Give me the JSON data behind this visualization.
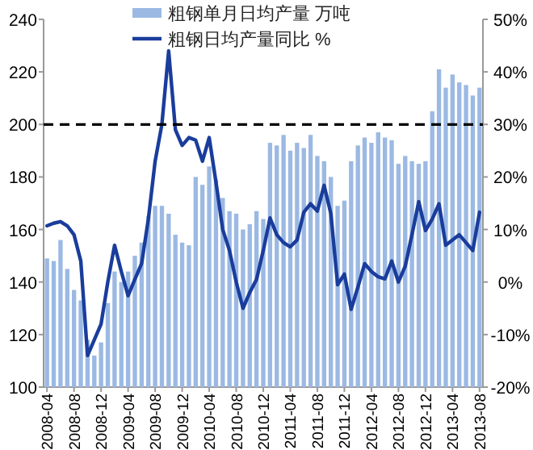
{
  "chart_data": {
    "type": "bar",
    "categories": [
      "2008-04",
      null,
      null,
      null,
      "2008-08",
      null,
      null,
      null,
      "2008-12",
      null,
      null,
      null,
      "2009-04",
      null,
      null,
      null,
      "2009-08",
      null,
      null,
      null,
      "2009-12",
      null,
      null,
      null,
      "2010-04",
      null,
      null,
      null,
      "2010-08",
      null,
      null,
      null,
      "2010-12",
      null,
      null,
      null,
      "2011-04",
      null,
      null,
      null,
      "2011-08",
      null,
      null,
      null,
      "2011-12",
      null,
      null,
      null,
      "2012-04",
      null,
      null,
      null,
      "2012-08",
      null,
      null,
      null,
      "2012-12",
      null,
      null,
      null,
      "2013-04",
      null,
      null,
      null,
      "2013-08"
    ],
    "series": [
      {
        "name": "粗钢单月日均产量 万吨",
        "color": "#9bb9e3",
        "values": [
          149,
          148,
          156,
          145,
          137,
          133,
          118,
          112,
          117,
          132,
          144,
          140,
          144,
          150,
          155,
          165,
          169,
          169,
          166,
          158,
          155,
          154,
          180,
          177,
          184,
          179,
          172,
          167,
          166,
          160,
          162,
          167,
          164,
          193,
          192,
          196,
          190,
          193,
          191,
          196,
          188,
          186,
          180,
          169,
          171,
          186,
          192,
          195,
          193,
          197,
          195,
          194,
          185,
          188,
          186,
          185,
          186,
          205,
          221,
          214,
          219,
          216,
          215,
          211,
          214
        ]
      },
      {
        "name": "粗钢日均产量同比 %",
        "type": "line",
        "axis": "y2",
        "color": "#1a3d9c",
        "values": [
          10.7,
          11.2,
          11.5,
          10.7,
          9,
          4,
          -14,
          -11,
          -8,
          0,
          7,
          2,
          -2.6,
          0.5,
          3.5,
          12,
          23,
          30,
          44,
          29,
          26,
          27.5,
          27,
          23,
          27.5,
          19,
          10,
          6,
          0,
          -5,
          -2,
          0.5,
          6,
          12.2,
          9,
          7.5,
          6.7,
          8,
          13.3,
          14.9,
          13.5,
          18.4,
          13,
          -0.5,
          1.5,
          -5.2,
          -1,
          3.5,
          2,
          1,
          0.6,
          4,
          0,
          3,
          9,
          15.3,
          9.8,
          12,
          14.9,
          7,
          8,
          9,
          7.5,
          6,
          13.3
        ]
      }
    ],
    "ylim": [
      100,
      240
    ],
    "yticks": [
      100,
      120,
      140,
      160,
      180,
      200,
      220,
      240
    ],
    "y2lim": [
      -20,
      50
    ],
    "y2ticks": [
      {
        "value": -20,
        "label": "-20%"
      },
      {
        "value": -10,
        "label": "-10%"
      },
      {
        "value": 0,
        "label": "0%"
      },
      {
        "value": 10,
        "label": "10%"
      },
      {
        "value": 20,
        "label": "20%"
      },
      {
        "value": 30,
        "label": "30%"
      },
      {
        "value": 40,
        "label": "40%"
      },
      {
        "value": 50,
        "label": "50%"
      }
    ],
    "ref_lines": [
      {
        "axis": "y",
        "value": 200,
        "color": "#000000",
        "line_style": "dashed"
      }
    ],
    "legend": "top"
  }
}
